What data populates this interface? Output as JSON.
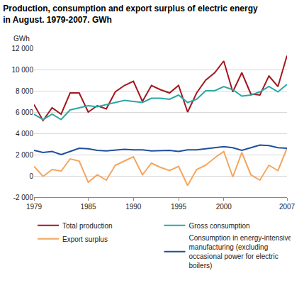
{
  "chart_data": {
    "type": "line",
    "title": "Production, consumption and export surplus of electric energy in August. 1979-2007. GWh",
    "y_label": "GWh",
    "x": [
      1979,
      1980,
      1981,
      1982,
      1983,
      1984,
      1985,
      1986,
      1987,
      1988,
      1989,
      1990,
      1991,
      1992,
      1993,
      1994,
      1995,
      1996,
      1997,
      1998,
      1999,
      2000,
      2001,
      2002,
      2003,
      2004,
      2005,
      2006,
      2007
    ],
    "series": [
      {
        "name": "Total production",
        "color": "#a3171e",
        "values": [
          6700,
          5200,
          6400,
          5800,
          7800,
          7800,
          6000,
          6600,
          6300,
          7900,
          8500,
          8900,
          7000,
          8500,
          8100,
          7800,
          8500,
          6000,
          7800,
          9000,
          9700,
          10800,
          7900,
          9700,
          7700,
          7600,
          9400,
          8400,
          11300
        ]
      },
      {
        "name": "Gross consumption",
        "color": "#2aa7a5",
        "values": [
          5800,
          5300,
          5800,
          5300,
          6200,
          6400,
          6600,
          6500,
          6700,
          6900,
          7100,
          7000,
          6900,
          7300,
          7300,
          7200,
          7600,
          6900,
          7200,
          8000,
          8000,
          8400,
          8100,
          7500,
          7600,
          7900,
          8400,
          7900,
          8600
        ]
      },
      {
        "name": "Export surplus",
        "color": "#f5a55e",
        "values": [
          900,
          -50,
          600,
          450,
          1600,
          1400,
          -600,
          100,
          -400,
          1000,
          1400,
          1800,
          100,
          1200,
          800,
          500,
          900,
          -900,
          600,
          1000,
          1700,
          2300,
          -100,
          2200,
          100,
          -400,
          1000,
          500,
          2600
        ]
      },
      {
        "name": "Consumption in energy-intensive manufacturing (excluding occasional power for electric boilers)",
        "color": "#1f4f9c",
        "values": [
          2400,
          2200,
          2300,
          2000,
          2300,
          2600,
          2550,
          2400,
          2350,
          2450,
          2500,
          2450,
          2450,
          2350,
          2400,
          2400,
          2300,
          2450,
          2450,
          2550,
          2650,
          2750,
          2650,
          2400,
          2650,
          2900,
          2850,
          2650,
          2600
        ]
      }
    ],
    "xlim": [
      1979,
      2007
    ],
    "xticks": [
      1979,
      1985,
      1990,
      1995,
      2000,
      2007
    ],
    "ylim": [
      -2000,
      12000
    ],
    "yticks": [
      {
        "value": -2000,
        "label": "-2 000"
      },
      0,
      {
        "value": 2000,
        "label": "2 000"
      },
      {
        "value": 4000,
        "label": "4 000"
      },
      {
        "value": 6000,
        "label": "6 000"
      },
      {
        "value": 8000,
        "label": "8 000"
      },
      {
        "value": 10000,
        "label": "10 000"
      },
      {
        "value": 12000,
        "label": "12 000"
      }
    ],
    "grid": true,
    "legend": "bottom"
  }
}
